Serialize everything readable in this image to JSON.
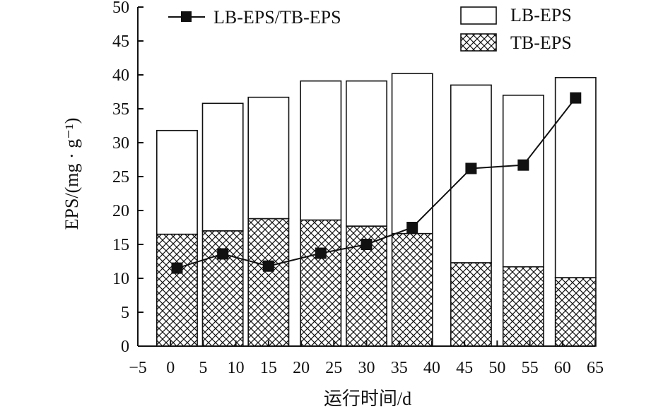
{
  "chart_data": {
    "type": "bar",
    "stacked": true,
    "title": "",
    "xlabel": "运行时间/d",
    "ylabel": "EPS/(mg · g⁻¹)",
    "xlim": [
      -5,
      65
    ],
    "ylim": [
      0,
      50
    ],
    "x_ticks": [
      -5,
      0,
      5,
      10,
      15,
      20,
      25,
      30,
      35,
      40,
      45,
      50,
      55,
      60,
      65
    ],
    "x_tick_labels": [
      "−5",
      "0",
      "5",
      "10",
      "15",
      "20",
      "25",
      "30",
      "35",
      "40",
      "45",
      "50",
      "55",
      "60",
      "65"
    ],
    "y_ticks": [
      0,
      5,
      10,
      15,
      20,
      25,
      30,
      35,
      40,
      45,
      50
    ],
    "bar_x": [
      1,
      8,
      15,
      23,
      30,
      37,
      46,
      54,
      62
    ],
    "bar_width": 6.2,
    "grid": false,
    "legend_position": "top",
    "series": [
      {
        "name": "TB-EPS",
        "kind": "bar",
        "pattern": "crosshatch",
        "values": [
          16.5,
          17.0,
          18.8,
          18.6,
          17.7,
          16.6,
          12.3,
          11.7,
          10.1
        ]
      },
      {
        "name": "LB-EPS",
        "kind": "bar",
        "pattern": "none",
        "values": [
          15.3,
          18.8,
          17.9,
          20.5,
          21.4,
          23.6,
          26.2,
          25.3,
          29.5
        ]
      },
      {
        "name": "LB-EPS/TB-EPS",
        "kind": "line",
        "marker": "square",
        "x": [
          1,
          8,
          15,
          23,
          30,
          37,
          46,
          54,
          62
        ],
        "values": [
          11.5,
          13.6,
          11.8,
          13.7,
          15.0,
          17.5,
          26.2,
          26.7,
          36.6
        ]
      }
    ]
  }
}
